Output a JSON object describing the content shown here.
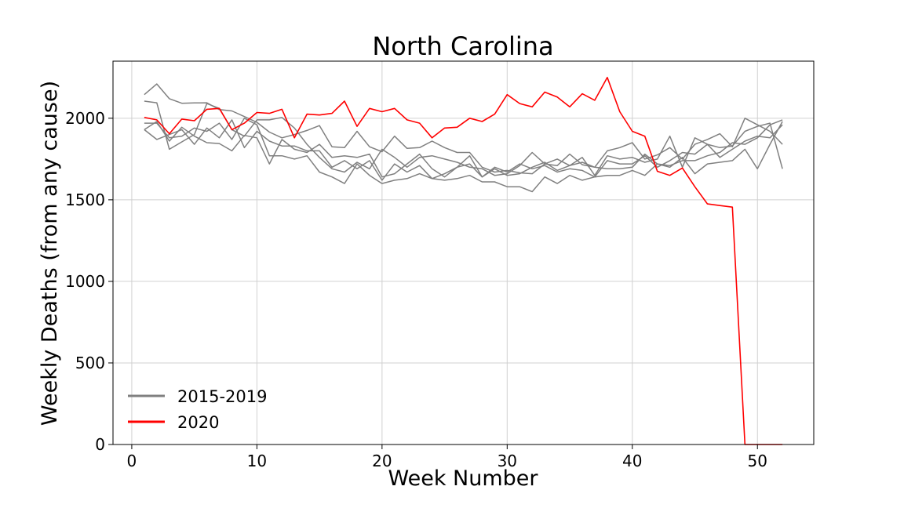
{
  "chart_data": {
    "type": "line",
    "title": "North Carolina",
    "xlabel": "Week Number",
    "ylabel": "Weekly Deaths (from any cause)",
    "xlim": [
      -1.5,
      54.5
    ],
    "ylim": [
      0,
      2350
    ],
    "xticks": [
      0,
      10,
      20,
      30,
      40,
      50
    ],
    "yticks": [
      0,
      500,
      1000,
      1500,
      2000
    ],
    "grid": true,
    "legend_position": "lower-left",
    "legend": [
      {
        "label": "2015-2019",
        "color": "#808080"
      },
      {
        "label": "2020",
        "color": "#ff0000"
      }
    ],
    "series": [
      {
        "group": "2015-2019",
        "color": "#808080",
        "values": [
          2145,
          2210,
          2120,
          2092,
          2094,
          2095,
          2053,
          2045,
          2010,
          1975,
          1915,
          1880,
          1900,
          1925,
          1955,
          1825,
          1820,
          1920,
          1825,
          1795,
          1890,
          1815,
          1820,
          1860,
          1820,
          1790,
          1790,
          1700,
          1670,
          1680,
          1665,
          1660,
          1720,
          1710,
          1780,
          1715,
          1700,
          1800,
          1820,
          1850,
          1750,
          1775,
          1820,
          1750,
          1840,
          1870,
          1905,
          1825,
          2000,
          1960,
          1920,
          1840
        ]
      },
      {
        "group": "2015-2019",
        "color": "#808080",
        "values": [
          2105,
          2095,
          1810,
          1855,
          1900,
          2090,
          2060,
          1930,
          1890,
          1990,
          1990,
          2005,
          1940,
          1840,
          1760,
          1690,
          1670,
          1730,
          1690,
          1810,
          1760,
          1700,
          1760,
          1770,
          1750,
          1730,
          1700,
          1690,
          1650,
          1660,
          1710,
          1790,
          1720,
          1750,
          1710,
          1760,
          1650,
          1770,
          1750,
          1760,
          1730,
          1750,
          1890,
          1700,
          1880,
          1840,
          1820,
          1830,
          1920,
          1950,
          1970,
          1690
        ]
      },
      {
        "group": "2015-2019",
        "color": "#808080",
        "values": [
          1930,
          1980,
          1860,
          1945,
          1890,
          1850,
          1845,
          1800,
          1895,
          1880,
          1720,
          1870,
          1810,
          1790,
          1840,
          1760,
          1770,
          1760,
          1780,
          1640,
          1660,
          1720,
          1780,
          1690,
          1640,
          1700,
          1720,
          1640,
          1700,
          1670,
          1720,
          1690,
          1710,
          1670,
          1690,
          1680,
          1640,
          1740,
          1720,
          1720,
          1770,
          1700,
          1740,
          1790,
          1780,
          1840,
          1760,
          1810,
          1860,
          1890,
          1880,
          1960
        ]
      },
      {
        "group": "2015-2019",
        "color": "#808080",
        "values": [
          1970,
          1970,
          1880,
          1890,
          1940,
          1920,
          1970,
          1870,
          2000,
          1960,
          1770,
          1770,
          1750,
          1770,
          1670,
          1640,
          1600,
          1720,
          1650,
          1600,
          1620,
          1630,
          1660,
          1630,
          1620,
          1630,
          1650,
          1610,
          1610,
          1580,
          1580,
          1550,
          1640,
          1600,
          1650,
          1620,
          1640,
          1650,
          1650,
          1680,
          1650,
          1720,
          1700,
          1760,
          1660,
          1720,
          1730,
          1740,
          1810,
          1690,
          1840,
          1980
        ]
      },
      {
        "group": "2015-2019",
        "color": "#808080",
        "values": [
          1930,
          1870,
          1900,
          1930,
          1840,
          1940,
          1880,
          1990,
          1820,
          1920,
          1860,
          1830,
          1830,
          1800,
          1800,
          1700,
          1740,
          1690,
          1740,
          1620,
          1720,
          1670,
          1710,
          1630,
          1660,
          1700,
          1770,
          1640,
          1690,
          1650,
          1660,
          1700,
          1730,
          1680,
          1710,
          1730,
          1700,
          1690,
          1690,
          1700,
          1780,
          1720,
          1710,
          1740,
          1740,
          1770,
          1790,
          1850,
          1840,
          1880,
          1960,
          1990
        ]
      },
      {
        "group": "2020",
        "color": "#ff0000",
        "values": [
          2005,
          1990,
          1905,
          1995,
          1985,
          2055,
          2060,
          1930,
          1970,
          2035,
          2030,
          2055,
          1880,
          2025,
          2020,
          2030,
          2105,
          1950,
          2060,
          2040,
          2060,
          1990,
          1970,
          1880,
          1940,
          1945,
          2000,
          1980,
          2025,
          2145,
          2090,
          2070,
          2160,
          2130,
          2070,
          2150,
          2110,
          2250,
          2040,
          1920,
          1890,
          1675,
          1650,
          1695,
          1580,
          1475,
          1465,
          1455,
          0,
          0,
          0,
          0
        ]
      }
    ]
  }
}
